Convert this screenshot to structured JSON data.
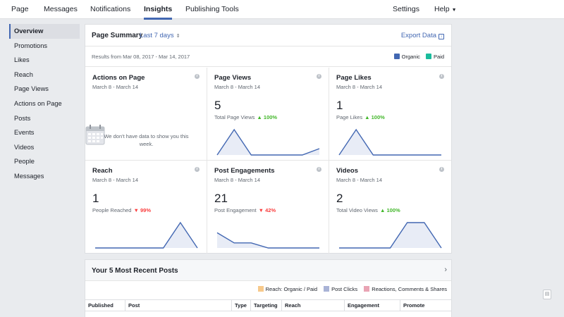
{
  "topnav": {
    "tabs": [
      {
        "label": "Page"
      },
      {
        "label": "Messages"
      },
      {
        "label": "Notifications"
      },
      {
        "label": "Insights"
      },
      {
        "label": "Publishing Tools"
      }
    ],
    "active_tab": "Insights",
    "settings_label": "Settings",
    "help_label": "Help"
  },
  "sidebar": {
    "active": "Overview",
    "items": [
      {
        "label": "Overview"
      },
      {
        "label": "Promotions"
      },
      {
        "label": "Likes"
      },
      {
        "label": "Reach"
      },
      {
        "label": "Page Views"
      },
      {
        "label": "Actions on Page"
      },
      {
        "label": "Posts"
      },
      {
        "label": "Events"
      },
      {
        "label": "Videos"
      },
      {
        "label": "People"
      },
      {
        "label": "Messages"
      }
    ]
  },
  "summary": {
    "title": "Page Summary",
    "range": "Last 7 days",
    "export_label": "Export Data",
    "results": "Results from Mar 08, 2017 - Mar 14, 2017",
    "legend": [
      {
        "label": "Organic",
        "color": "#4267b2"
      },
      {
        "label": "Paid",
        "color": "#1abc9c"
      }
    ],
    "cells": [
      {
        "title": "Actions on Page",
        "date": "March 8 - March 14",
        "empty_msg": "We don't have data to show you this week."
      },
      {
        "title": "Page Views",
        "date": "March 8 - March 14",
        "value": "5",
        "label": "Total Page Views",
        "change": "100%",
        "dir": "up",
        "trend": [
          0,
          1,
          0,
          0,
          0,
          0,
          0.25
        ]
      },
      {
        "title": "Page Likes",
        "date": "March 8 - March 14",
        "value": "1",
        "label": "Page Likes",
        "change": "100%",
        "dir": "up",
        "trend": [
          0,
          1,
          0,
          0,
          0,
          0,
          0
        ]
      },
      {
        "title": "Reach",
        "date": "March 8 - March 14",
        "value": "1",
        "label": "People Reached",
        "change": "99%",
        "dir": "down",
        "trend": [
          0,
          0,
          0,
          0,
          0,
          1,
          0
        ]
      },
      {
        "title": "Post Engagements",
        "date": "March 8 - March 14",
        "value": "21",
        "label": "Post Engagement",
        "change": "42%",
        "dir": "down",
        "trend": [
          0.6,
          0.2,
          0.2,
          0,
          0,
          0,
          0
        ]
      },
      {
        "title": "Videos",
        "date": "March 8 - March 14",
        "value": "2",
        "label": "Total Video Views",
        "change": "100%",
        "dir": "up",
        "trend": [
          0,
          0,
          0,
          0,
          1,
          1,
          0
        ]
      }
    ]
  },
  "posts": {
    "title": "Your 5 Most Recent Posts",
    "legend": [
      {
        "label": "Reach: Organic / Paid",
        "color": "#f7c98b"
      },
      {
        "label": "Post Clicks",
        "color": "#a9b3d6"
      },
      {
        "label": "Reactions, Comments & Shares",
        "color": "#e9a4b4"
      }
    ],
    "columns": [
      "Published",
      "Post",
      "Type",
      "Targeting",
      "Reach",
      "Engagement",
      "Promote"
    ]
  }
}
